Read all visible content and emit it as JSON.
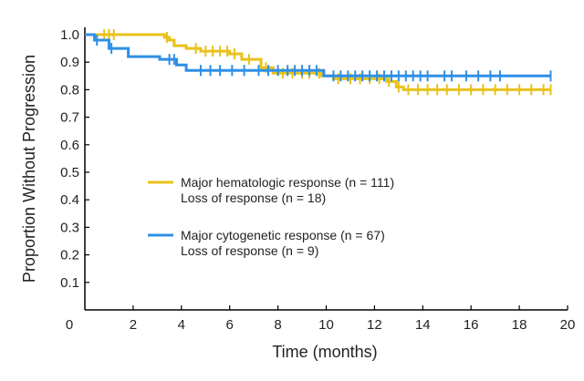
{
  "chart_data": {
    "type": "line",
    "title": "",
    "xlabel": "Time (months)",
    "ylabel": "Proportion Without Progression",
    "xlim": [
      0,
      20
    ],
    "ylim": [
      0,
      1.0
    ],
    "x_ticks": [
      "0",
      "2",
      "4",
      "6",
      "8",
      "10",
      "12",
      "14",
      "16",
      "18",
      "20"
    ],
    "y_ticks": [
      "0.1",
      "0.2",
      "0.3",
      "0.4",
      "0.5",
      "0.6",
      "0.7",
      "0.8",
      "0.9",
      "1.0"
    ],
    "grid": false,
    "legend_position": "center-left",
    "series": [
      {
        "name": "Major hematologic response (n = 111)",
        "subtitle": "Loss of response (n = 18)",
        "color": "#e8c21a",
        "step_points": [
          [
            0,
            1.0
          ],
          [
            3.3,
            0.99
          ],
          [
            3.5,
            0.98
          ],
          [
            3.7,
            0.96
          ],
          [
            4.2,
            0.95
          ],
          [
            4.8,
            0.94
          ],
          [
            6.0,
            0.93
          ],
          [
            6.5,
            0.91
          ],
          [
            7.3,
            0.88
          ],
          [
            7.8,
            0.86
          ],
          [
            9.8,
            0.85
          ],
          [
            10.3,
            0.84
          ],
          [
            12.5,
            0.83
          ],
          [
            12.9,
            0.81
          ],
          [
            13.2,
            0.8
          ],
          [
            19.3,
            0.8
          ]
        ],
        "censor_x": [
          0.8,
          1.0,
          1.2,
          3.4,
          4.6,
          5.0,
          5.3,
          5.6,
          5.9,
          6.2,
          6.8,
          7.5,
          8.2,
          8.6,
          9.0,
          9.3,
          9.7,
          10.5,
          11.0,
          11.4,
          11.8,
          12.2,
          12.6,
          13.0,
          13.4,
          13.8,
          14.2,
          14.6,
          15.0,
          15.5,
          16.0,
          16.5,
          17.0,
          17.5,
          18.0,
          18.5,
          19.0,
          19.3
        ]
      },
      {
        "name": "Major cytogenetic response (n = 67)",
        "subtitle": "Loss of response (n = 9)",
        "color": "#2f8fe6",
        "step_points": [
          [
            0,
            1.0
          ],
          [
            0.4,
            0.98
          ],
          [
            1.0,
            0.95
          ],
          [
            1.8,
            0.92
          ],
          [
            3.1,
            0.91
          ],
          [
            3.8,
            0.89
          ],
          [
            4.2,
            0.87
          ],
          [
            8.3,
            0.87
          ],
          [
            9.9,
            0.85
          ],
          [
            19.3,
            0.85
          ]
        ],
        "censor_x": [
          0.5,
          1.1,
          3.5,
          3.7,
          4.8,
          5.2,
          5.6,
          6.1,
          6.6,
          7.2,
          7.6,
          8.0,
          8.4,
          8.7,
          9.0,
          9.3,
          9.6,
          10.3,
          10.6,
          10.9,
          11.2,
          11.5,
          11.8,
          12.1,
          12.4,
          12.7,
          13.0,
          13.3,
          13.6,
          13.9,
          14.2,
          14.9,
          15.2,
          15.8,
          16.3,
          16.8,
          17.2,
          19.3
        ]
      }
    ]
  }
}
